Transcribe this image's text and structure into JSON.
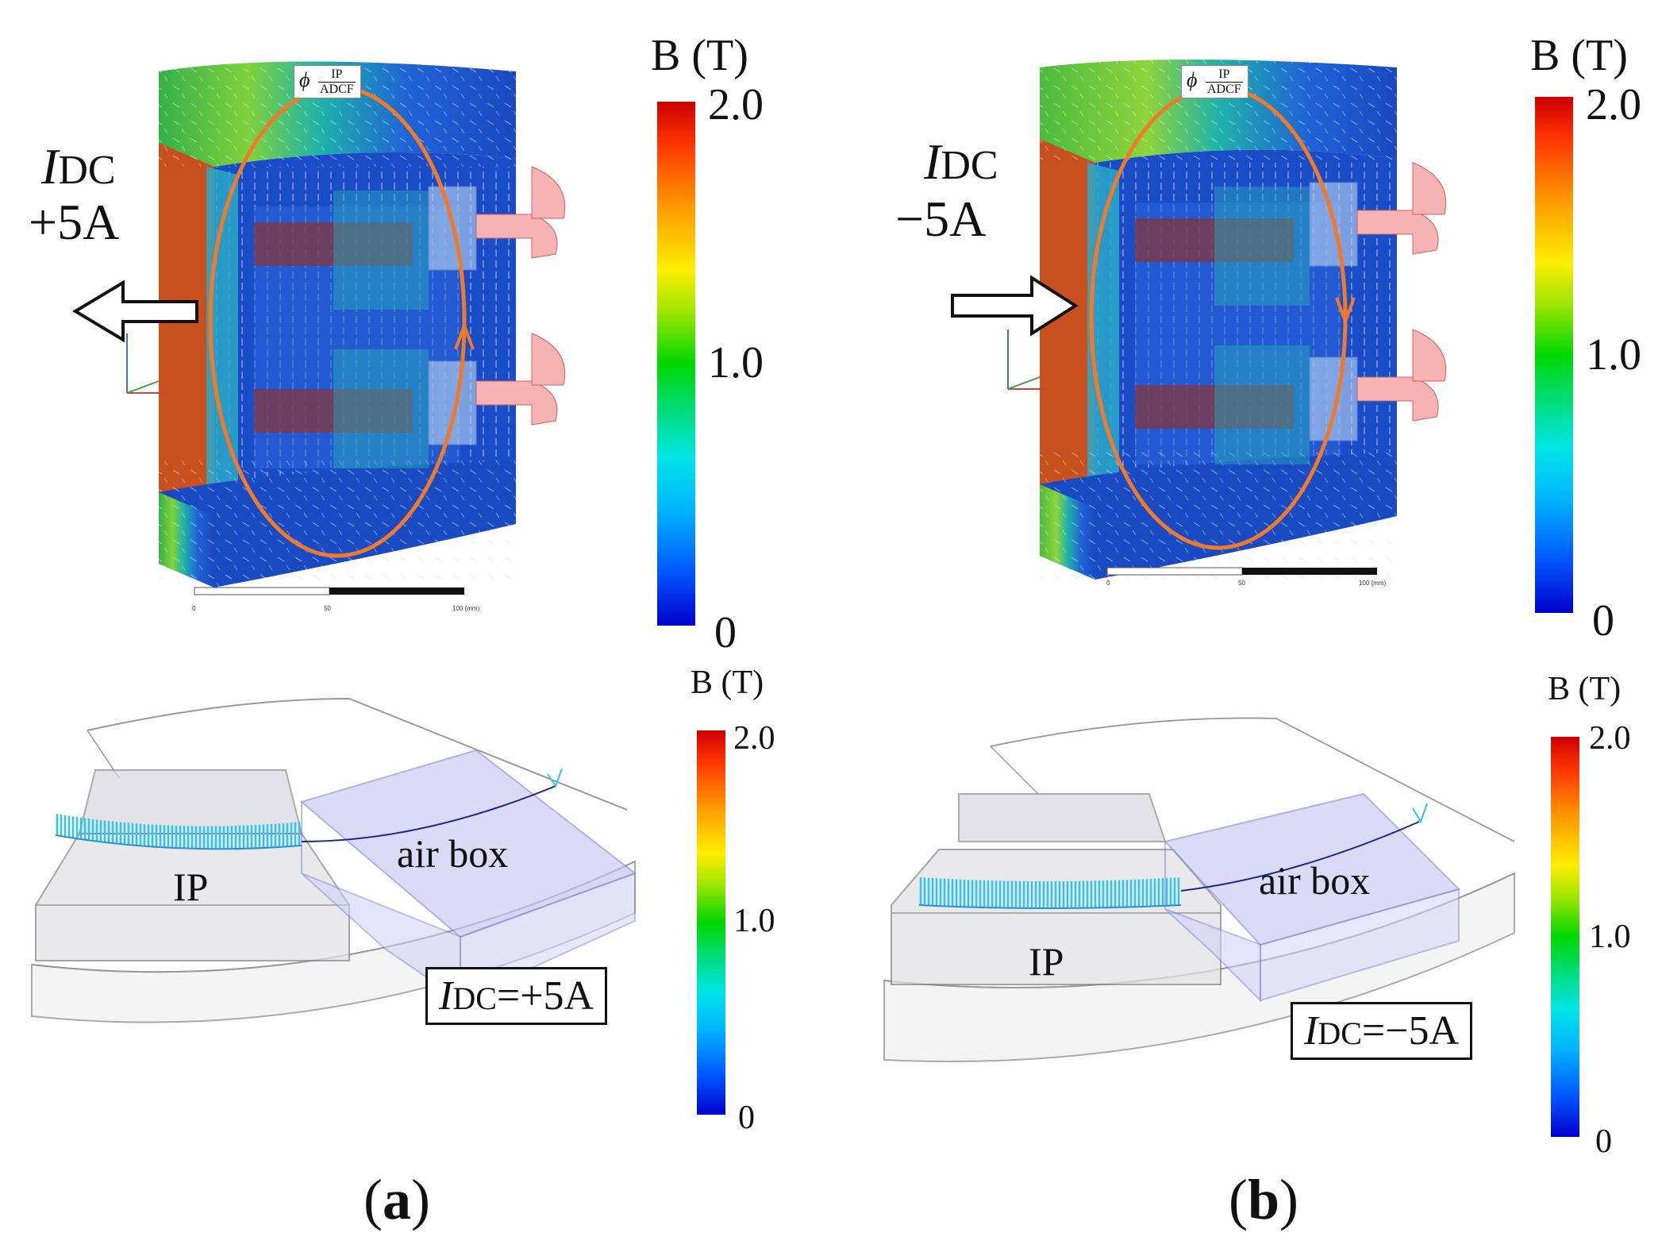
{
  "panel_a": {
    "sublabel": "a",
    "field_plot": {
      "current_label_main": "I",
      "current_label_sub": "DC",
      "current_value": "+5A",
      "flux_symbol": "ϕ",
      "flux_num": "IP",
      "flux_den": "ADCF",
      "scale_ticks": [
        "0",
        "50",
        "100 (mm)"
      ]
    },
    "colorbar_top": {
      "title": "B (T)",
      "max": "2.0",
      "mid": "1.0",
      "min": "0"
    },
    "detail_plot": {
      "air_box_label": "air box",
      "ip_label": "IP",
      "condition_main": "I",
      "condition_sub": "DC",
      "condition_value": "=+5A"
    },
    "colorbar_bottom": {
      "title": "B (T)",
      "max": "2.0",
      "mid": "1.0",
      "min": "0"
    }
  },
  "panel_b": {
    "sublabel": "b",
    "field_plot": {
      "current_label_main": "I",
      "current_label_sub": "DC",
      "current_value": "−5A",
      "flux_symbol": "ϕ",
      "flux_num": "IP",
      "flux_den": "ADCF",
      "scale_ticks": [
        "0",
        "50",
        "100 (mm)"
      ]
    },
    "colorbar_top": {
      "title": "B (T)",
      "max": "2.0",
      "mid": "1.0",
      "min": "0"
    },
    "detail_plot": {
      "air_box_label": "air box",
      "ip_label": "IP",
      "condition_main": "I",
      "condition_sub": "DC",
      "condition_value": "=−5A"
    },
    "colorbar_bottom": {
      "title": "B (T)",
      "max": "2.0",
      "mid": "1.0",
      "min": "0"
    }
  },
  "colors": {
    "flux_loop": "#f07a2a",
    "core_blue": "#1f4fc8",
    "core_red": "#c8461e",
    "vector_cyan": "#33c8f0",
    "air_box_fill": "#c8c8f5"
  }
}
